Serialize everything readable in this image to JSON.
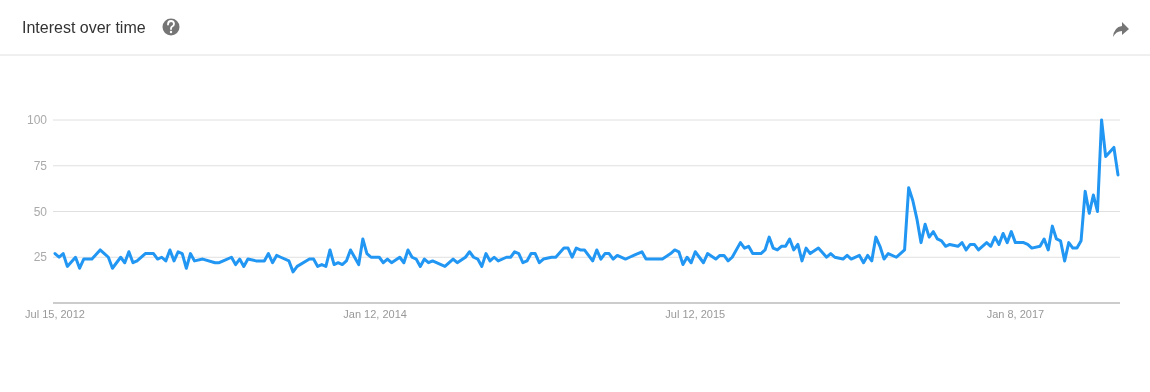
{
  "chart_data": {
    "type": "line",
    "title": "Interest over time",
    "color": "#2196f3",
    "x": [
      "2012-07-15",
      "2012-07-22",
      "2012-07-29",
      "2012-08-05",
      "2012-08-19",
      "2012-08-26",
      "2012-09-02",
      "2012-09-16",
      "2012-09-30",
      "2012-10-14",
      "2012-10-21",
      "2012-11-04",
      "2012-11-11",
      "2012-11-18",
      "2012-11-25",
      "2012-12-02",
      "2012-12-16",
      "2012-12-30",
      "2013-01-06",
      "2013-01-13",
      "2013-01-20",
      "2013-01-27",
      "2013-02-03",
      "2013-02-10",
      "2013-02-17",
      "2013-02-24",
      "2013-03-03",
      "2013-03-10",
      "2013-03-24",
      "2013-04-14",
      "2013-04-21",
      "2013-04-28",
      "2013-05-12",
      "2013-05-19",
      "2013-05-26",
      "2013-06-02",
      "2013-06-09",
      "2013-06-23",
      "2013-07-07",
      "2013-07-14",
      "2013-07-21",
      "2013-07-28",
      "2013-08-04",
      "2013-08-18",
      "2013-08-25",
      "2013-09-01",
      "2013-09-22",
      "2013-09-29",
      "2013-10-06",
      "2013-10-13",
      "2013-10-20",
      "2013-10-27",
      "2013-11-03",
      "2013-11-10",
      "2013-11-17",
      "2013-11-24",
      "2013-12-01",
      "2013-12-08",
      "2013-12-15",
      "2013-12-22",
      "2013-12-29",
      "2014-01-05",
      "2014-01-19",
      "2014-01-26",
      "2014-02-02",
      "2014-02-09",
      "2014-02-23",
      "2014-03-02",
      "2014-03-09",
      "2014-03-16",
      "2014-03-23",
      "2014-03-30",
      "2014-04-06",
      "2014-04-13",
      "2014-04-20",
      "2014-05-11",
      "2014-05-25",
      "2014-06-01",
      "2014-06-15",
      "2014-06-22",
      "2014-06-29",
      "2014-07-06",
      "2014-07-13",
      "2014-07-20",
      "2014-07-27",
      "2014-08-03",
      "2014-08-10",
      "2014-08-24",
      "2014-08-31",
      "2014-09-07",
      "2014-09-14",
      "2014-09-21",
      "2014-09-28",
      "2014-10-05",
      "2014-10-12",
      "2014-10-19",
      "2014-10-26",
      "2014-11-09",
      "2014-11-16",
      "2014-11-30",
      "2014-12-07",
      "2014-12-14",
      "2014-12-21",
      "2014-12-28",
      "2015-01-04",
      "2015-01-11",
      "2015-01-18",
      "2015-01-25",
      "2015-02-01",
      "2015-02-08",
      "2015-02-15",
      "2015-02-22",
      "2015-03-01",
      "2015-03-15",
      "2015-03-22",
      "2015-03-29",
      "2015-04-12",
      "2015-04-19",
      "2015-04-26",
      "2015-05-17",
      "2015-05-31",
      "2015-06-07",
      "2015-06-14",
      "2015-06-21",
      "2015-06-28",
      "2015-07-05",
      "2015-07-12",
      "2015-07-19",
      "2015-07-26",
      "2015-08-02",
      "2015-08-16",
      "2015-08-23",
      "2015-08-30",
      "2015-09-06",
      "2015-09-13",
      "2015-09-27",
      "2015-10-04",
      "2015-10-11",
      "2015-10-18",
      "2015-11-01",
      "2015-11-08",
      "2015-11-15",
      "2015-11-22",
      "2015-11-29",
      "2015-12-06",
      "2015-12-13",
      "2015-12-20",
      "2015-12-27",
      "2016-01-03",
      "2016-01-10",
      "2016-01-17",
      "2016-01-24",
      "2016-02-07",
      "2016-02-21",
      "2016-02-28",
      "2016-03-06",
      "2016-03-20",
      "2016-03-27",
      "2016-04-03",
      "2016-04-17",
      "2016-04-24",
      "2016-05-01",
      "2016-05-08",
      "2016-05-15",
      "2016-05-22",
      "2016-05-29",
      "2016-06-05",
      "2016-06-19",
      "2016-07-03",
      "2016-07-10",
      "2016-07-17",
      "2016-07-24",
      "2016-07-31",
      "2016-08-07",
      "2016-08-14",
      "2016-08-21",
      "2016-08-28",
      "2016-09-04",
      "2016-09-11",
      "2016-09-18",
      "2016-10-02",
      "2016-10-09",
      "2016-10-16",
      "2016-10-23",
      "2016-10-30",
      "2016-11-06",
      "2016-11-20",
      "2016-11-27",
      "2016-12-04",
      "2016-12-11",
      "2016-12-18",
      "2016-12-25",
      "2017-01-01",
      "2017-01-08",
      "2017-01-22",
      "2017-01-29",
      "2017-02-05",
      "2017-02-19",
      "2017-02-26",
      "2017-03-05",
      "2017-03-12",
      "2017-03-19",
      "2017-03-26",
      "2017-04-02",
      "2017-04-09",
      "2017-04-16",
      "2017-04-23",
      "2017-04-30",
      "2017-05-07",
      "2017-05-14",
      "2017-05-21",
      "2017-05-28",
      "2017-06-04",
      "2017-06-11",
      "2017-06-25",
      "2017-07-02"
    ],
    "values": [
      27,
      25,
      27,
      20,
      25,
      19,
      24,
      24,
      29,
      25,
      19,
      25,
      22,
      28,
      22,
      23,
      27,
      27,
      24,
      25,
      23,
      29,
      23,
      28,
      27,
      19,
      27,
      23,
      24,
      22,
      22,
      23,
      25,
      21,
      24,
      20,
      24,
      23,
      23,
      27,
      22,
      26,
      25,
      23,
      17,
      20,
      24,
      24,
      20,
      21,
      20,
      29,
      21,
      22,
      21,
      23,
      29,
      25,
      21,
      35,
      27,
      25,
      25,
      22,
      24,
      22,
      25,
      22,
      29,
      25,
      24,
      20,
      24,
      22,
      23,
      20,
      24,
      22,
      25,
      28,
      25,
      24,
      20,
      27,
      23,
      25,
      23,
      25,
      25,
      28,
      27,
      22,
      23,
      27,
      27,
      22,
      24,
      25,
      25,
      30,
      30,
      25,
      30,
      29,
      29,
      26,
      23,
      29,
      24,
      27,
      27,
      24,
      26,
      24,
      25,
      26,
      28,
      24,
      24,
      24,
      27,
      29,
      28,
      21,
      25,
      22,
      28,
      25,
      22,
      27,
      24,
      26,
      26,
      23,
      25,
      33,
      30,
      31,
      27,
      27,
      29,
      36,
      30,
      29,
      31,
      31,
      35,
      29,
      32,
      23,
      30,
      27,
      30,
      25,
      27,
      25,
      24,
      26,
      24,
      26,
      22,
      26,
      23,
      36,
      31,
      24,
      27,
      25,
      29,
      63,
      56,
      46,
      33,
      43,
      36,
      39,
      35,
      34,
      31,
      32,
      31,
      33,
      29,
      32,
      32,
      29,
      33,
      31,
      36,
      32,
      38,
      33,
      39,
      33,
      33,
      32,
      30,
      31,
      35,
      29,
      42,
      35,
      34,
      23,
      33,
      30,
      30,
      34,
      61,
      49,
      59,
      50,
      100,
      80,
      85,
      70
    ],
    "xlim": [
      "2012-07-15",
      "2017-07-02"
    ],
    "xticks": [
      {
        "value": "2012-07-15",
        "label": "Jul 15, 2012"
      },
      {
        "value": "2014-01-12",
        "label": "Jan 12, 2014"
      },
      {
        "value": "2015-07-12",
        "label": "Jul 12, 2015"
      },
      {
        "value": "2017-01-08",
        "label": "Jan 8, 2017"
      }
    ],
    "ylim": [
      0,
      100
    ],
    "yticks": [
      25,
      50,
      75,
      100
    ],
    "grid": "y"
  }
}
